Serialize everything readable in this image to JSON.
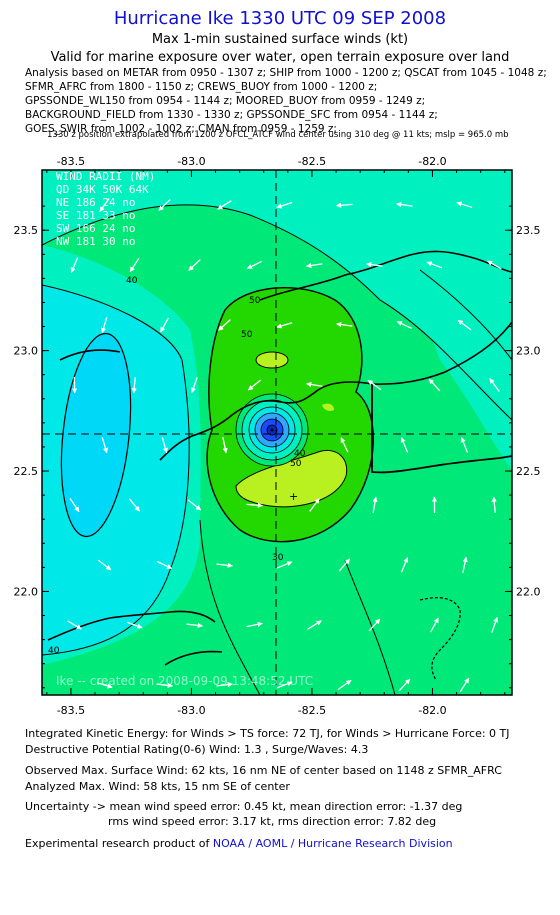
{
  "header": {
    "title": "Hurricane Ike 1330 UTC 09 SEP 2008",
    "subtitle1": "Max 1-min sustained surface winds (kt)",
    "subtitle2": "Valid for marine exposure over water, open terrain exposure over land"
  },
  "analysis_lines": [
    "Analysis based on  METAR from 0950 - 1307 z;  SHIP from 1000 - 1200 z;  QSCAT from 1045 - 1048 z;",
    "SFMR_AFRC from 1800 - 1150 z;  CREWS_BUOY from 1000 - 1200 z;",
    "GPSSONDE_WL150 from 0954 - 1144 z;  MOORED_BUOY from 0959 - 1249 z;",
    "BACKGROUND_FIELD from 1330 - 1330 z;  GPSSONDE_SFC from 0954 - 1144 z;",
    "GOES_SWIR from 1002 - 1002 z;  CMAN from 0959 - 1259 z;"
  ],
  "position_note": "1330 z position extrapolated from 1200 z OFCL_ATCF wind center using 310 deg @ 11 kts; mslp = 965.0 mb",
  "wind_radii": {
    "header": "WIND RADII (NM)",
    "columns": "QD  34K  50K  64K",
    "rows": [
      "NE  186  24   no",
      "SE  181  33   no",
      "SW  166  24   no",
      "NW  181  30   no"
    ]
  },
  "credit": "Ike -- created on 2008-09-09 13:48:52 UTC",
  "chart_data": {
    "type": "contour",
    "x_ticks": [
      "-83.5",
      "-83.0",
      "-82.5",
      "-82.0"
    ],
    "y_ticks": [
      "23.5",
      "23.0",
      "22.5",
      "22.0"
    ],
    "xlim": [
      -83.62,
      -81.67
    ],
    "ylim": [
      21.57,
      23.75
    ],
    "center": {
      "lon": -82.64,
      "lat": 22.58
    },
    "contour_labels": [
      "30",
      "40",
      "50",
      "60"
    ],
    "contour_label_values": [
      30,
      40,
      50,
      60
    ],
    "colors": {
      "c30": "#00e8e8",
      "c30_40": "#00f0c0",
      "c40_50": "#00e878",
      "c50_60": "#22d800",
      "c60": "#b8f020",
      "core": "#1a4cff",
      "coast": "#000000",
      "arrow": "#ffffff"
    }
  },
  "footer": {
    "ike_line1": "Integrated Kinetic Energy:  for Winds > TS force: 72 TJ,  for Winds > Hurricane Force: 0 TJ",
    "ike_line2": "Destructive Potential Rating(0-6)   Wind: 1.3 , Surge/Waves: 4.3",
    "obs_line": "Observed Max. Surface Wind: 62 kts, 16 nm NE of center based on 1148 z SFMR_AFRC",
    "analyzed_line": "Analyzed Max. Wind: 58 kts, 15 nm SE of center",
    "unc_line1": "Uncertainty -> mean wind speed error: 0.45 kt,   mean direction error:  -1.37 deg",
    "unc_line2": "rms wind speed error: 3.17 kt,   rms direction error: 7.82 deg",
    "credit_prefix": "Experimental research product of ",
    "credit_org": "NOAA / AOML / Hurricane Research Division"
  }
}
